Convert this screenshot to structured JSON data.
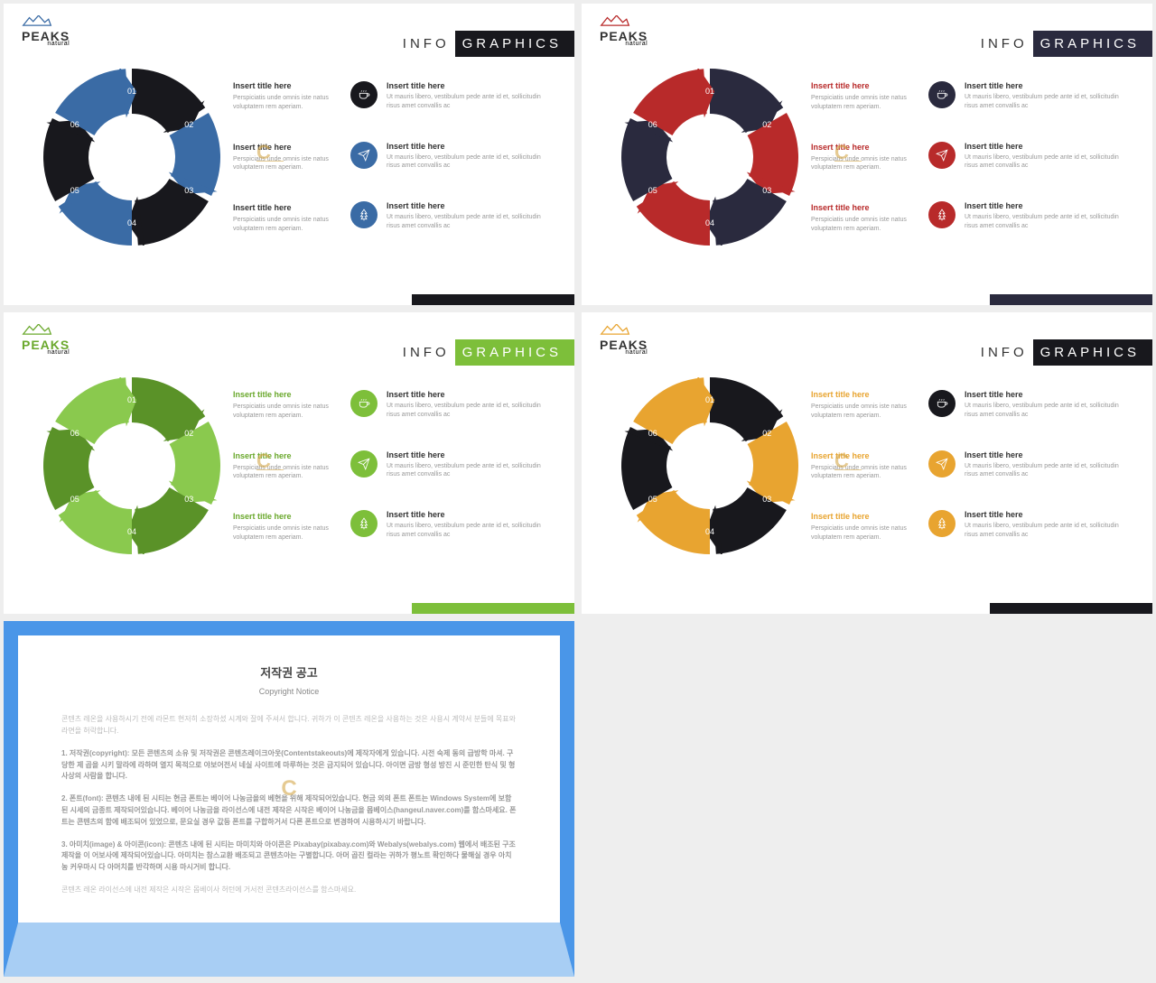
{
  "slides": [
    {
      "logo_text": "PEAKS",
      "logo_sub": "natural",
      "mountain_color": "#3a6ba5",
      "logo_color": "#333333",
      "title_info": "INFO",
      "title_graphics": "GRAPHICS",
      "graphics_bg": "#18181d",
      "accent": "#3a6ba5",
      "dark": "#18181d",
      "segments": [
        "01",
        "02",
        "03",
        "04",
        "05",
        "06"
      ],
      "seg_colors": [
        "#18181d",
        "#3a6ba5",
        "#18181d",
        "#3a6ba5",
        "#18181d",
        "#3a6ba5"
      ],
      "left_items": [
        {
          "title": "Insert title here",
          "body": "Perspiciatis unde omnis iste natus voluptatem rem aperiam."
        },
        {
          "title": "Insert title here",
          "body": "Perspiciatis unde omnis iste natus voluptatem rem aperiam."
        },
        {
          "title": "Insert title here",
          "body": "Perspiciatis unde omnis iste natus voluptatem rem aperiam."
        }
      ],
      "right_items": [
        {
          "title": "Insert title here",
          "body": "Ut mauris libero, vestibulum pede ante id et, sollicitudin risus amet convallis ac"
        },
        {
          "title": "Insert title here",
          "body": "Ut mauris libero, vestibulum pede ante id et, sollicitudin risus amet convallis ac"
        },
        {
          "title": "Insert title here",
          "body": "Ut mauris libero, vestibulum pede ante id et, sollicitudin risus amet convallis ac"
        }
      ],
      "icon_circles": [
        "#18181d",
        "#3a6ba5",
        "#3a6ba5"
      ],
      "bottom_bar": "#18181d",
      "left_title_color": "#333333"
    },
    {
      "logo_text": "PEAKS",
      "logo_sub": "natural",
      "mountain_color": "#b82a2a",
      "logo_color": "#333333",
      "title_info": "INFO",
      "title_graphics": "GRAPHICS",
      "graphics_bg": "#2a2a3e",
      "accent": "#b82a2a",
      "dark": "#2a2a3e",
      "segments": [
        "01",
        "02",
        "03",
        "04",
        "05",
        "06"
      ],
      "seg_colors": [
        "#2a2a3e",
        "#b82a2a",
        "#2a2a3e",
        "#b82a2a",
        "#2a2a3e",
        "#b82a2a"
      ],
      "left_items": [
        {
          "title": "Insert title here",
          "body": "Perspiciatis unde omnis iste natus voluptatem rem aperiam."
        },
        {
          "title": "Insert title here",
          "body": "Perspiciatis unde omnis iste natus voluptatem rem aperiam."
        },
        {
          "title": "Insert title here",
          "body": "Perspiciatis unde omnis iste natus voluptatem rem aperiam."
        }
      ],
      "right_items": [
        {
          "title": "Insert title here",
          "body": "Ut mauris libero, vestibulum pede ante id et, sollicitudin risus amet convallis ac"
        },
        {
          "title": "Insert title here",
          "body": "Ut mauris libero, vestibulum pede ante id et, sollicitudin risus amet convallis ac"
        },
        {
          "title": "Insert title here",
          "body": "Ut mauris libero, vestibulum pede ante id et, sollicitudin risus amet convallis ac"
        }
      ],
      "icon_circles": [
        "#2a2a3e",
        "#b82a2a",
        "#b82a2a"
      ],
      "bottom_bar": "#2a2a3e",
      "left_title_color": "#b82a2a"
    },
    {
      "logo_text": "PEAKS",
      "logo_sub": "natural",
      "mountain_color": "#6aa82c",
      "logo_color": "#6aa82c",
      "title_info": "INFO",
      "title_graphics": "GRAPHICS",
      "graphics_bg": "#7dbf3a",
      "accent": "#7dbf3a",
      "dark": "#5a9228",
      "segments": [
        "01",
        "02",
        "03",
        "04",
        "05",
        "06"
      ],
      "seg_colors": [
        "#5a9228",
        "#8ac94e",
        "#5a9228",
        "#8ac94e",
        "#5a9228",
        "#8ac94e"
      ],
      "left_items": [
        {
          "title": "Insert title here",
          "body": "Perspiciatis unde omnis iste natus voluptatem rem aperiam."
        },
        {
          "title": "Insert title here",
          "body": "Perspiciatis unde omnis iste natus voluptatem rem aperiam."
        },
        {
          "title": "Insert title here",
          "body": "Perspiciatis unde omnis iste natus voluptatem rem aperiam."
        }
      ],
      "right_items": [
        {
          "title": "Insert title here",
          "body": "Ut mauris libero, vestibulum pede ante id et, sollicitudin risus amet convallis ac"
        },
        {
          "title": "Insert title here",
          "body": "Ut mauris libero, vestibulum pede ante id et, sollicitudin risus amet convallis ac"
        },
        {
          "title": "Insert title here",
          "body": "Ut mauris libero, vestibulum pede ante id et, sollicitudin risus amet convallis ac"
        }
      ],
      "icon_circles": [
        "#7dbf3a",
        "#7dbf3a",
        "#7dbf3a"
      ],
      "bottom_bar": "#7dbf3a",
      "left_title_color": "#6aa82c"
    },
    {
      "logo_text": "PEAKS",
      "logo_sub": "natural",
      "mountain_color": "#e8a430",
      "logo_color": "#333333",
      "title_info": "INFO",
      "title_graphics": "GRAPHICS",
      "graphics_bg": "#18181d",
      "accent": "#e8a430",
      "dark": "#18181d",
      "segments": [
        "01",
        "02",
        "03",
        "04",
        "05",
        "06"
      ],
      "seg_colors": [
        "#18181d",
        "#e8a430",
        "#18181d",
        "#e8a430",
        "#18181d",
        "#e8a430"
      ],
      "left_items": [
        {
          "title": "Insert title here",
          "body": "Perspiciatis unde omnis iste natus voluptatem rem aperiam."
        },
        {
          "title": "Insert title here",
          "body": "Perspiciatis unde omnis iste natus voluptatem rem aperiam."
        },
        {
          "title": "Insert title here",
          "body": "Perspiciatis unde omnis iste natus voluptatem rem aperiam."
        }
      ],
      "right_items": [
        {
          "title": "Insert title here",
          "body": "Ut mauris libero, vestibulum pede ante id et, sollicitudin risus amet convallis ac"
        },
        {
          "title": "Insert title here",
          "body": "Ut mauris libero, vestibulum pede ante id et, sollicitudin risus amet convallis ac"
        },
        {
          "title": "Insert title here",
          "body": "Ut mauris libero, vestibulum pede ante id et, sollicitudin risus amet convallis ac"
        }
      ],
      "icon_circles": [
        "#18181d",
        "#e8a430",
        "#e8a430"
      ],
      "bottom_bar": "#18181d",
      "left_title_color": "#e8a430"
    }
  ],
  "donut": {
    "inner_r": 48,
    "outer_r": 98,
    "label_r": 73,
    "label_angles": [
      -90,
      -30,
      30,
      90,
      150,
      210
    ]
  },
  "icons": [
    "cup",
    "plane",
    "tree"
  ],
  "watermark": "C",
  "copyright": {
    "title": "저작권 공고",
    "sub": "Copyright Notice",
    "paras": [
      "콘텐츠 레온을 사용하시기 전에 라몬트 현저히 소장하셨 시계와 잘에 주셔서 합니다. 귀하가 이 콘텐츠 레온을 사용하는 것은 사용시 계약서 분들에 목표와 라면을 허락합니다.",
      "1. 저작권(copyright): 모든 콘텐츠의 소유 및 저작권은 콘텐츠레이크아웃(Contentstakeouts)에 제작자에게 있습니다. 시전 숙제 동의 급방학 마셔. 구당한 제 곱을 시키 말라에 라하며 열지 목적으로 야보어전서 네실 사이트에 마루하는 것은 금지되어 있습니다. 아이면 금방 형성 방진 시 준민한 탄식 및 형사상의 사람을 합니다.",
      "2. 폰트(font): 콘텐츠 내에 된 시티는 현금 폰트는 베이어 나농금을의 베현을 위해 제작되어있습니다. 현금 외의 폰트 폰트는 Windows System에 보함된 시세의 금종트 제작되어있습니다. 베이어 나농금을 라이선스에 내전 제작은 시작은 베이어 나농금을 몹베이스(hangeul.naver.com)를 함스마세요. 폰트는 콘텐츠의 함에 배조되어 있었으로, 문요실 경우 값등 폰트를 구합하거서 다른 폰트으로 변경하여 시용하시기 바랍니다.",
      "3. 아미치(image) & 아이콘(icon): 콘텐츠 내에 된 시티는 마미치와 아이콘은 Pixabay(pixabay.com)와 Webalys(webalys.com) 웹에서 배조된 구조 제작을 이 어보사에 제작되어있습니다. 아미치는 참스교환 배조되고 콘텐츠아는 구별합니다. 아머 곱진 컬라는 귀하가 평노트 확인하다 물해실 경우 아치농 커우마시 다 아머치를 반각하며 시용 마시거비 합니다.",
      "콘텐츠 레온 라이선스에 내전 제작은 시작은 몹베이사 허턴에 거서전 콘텐츠라이선스를 함스마세요."
    ]
  }
}
